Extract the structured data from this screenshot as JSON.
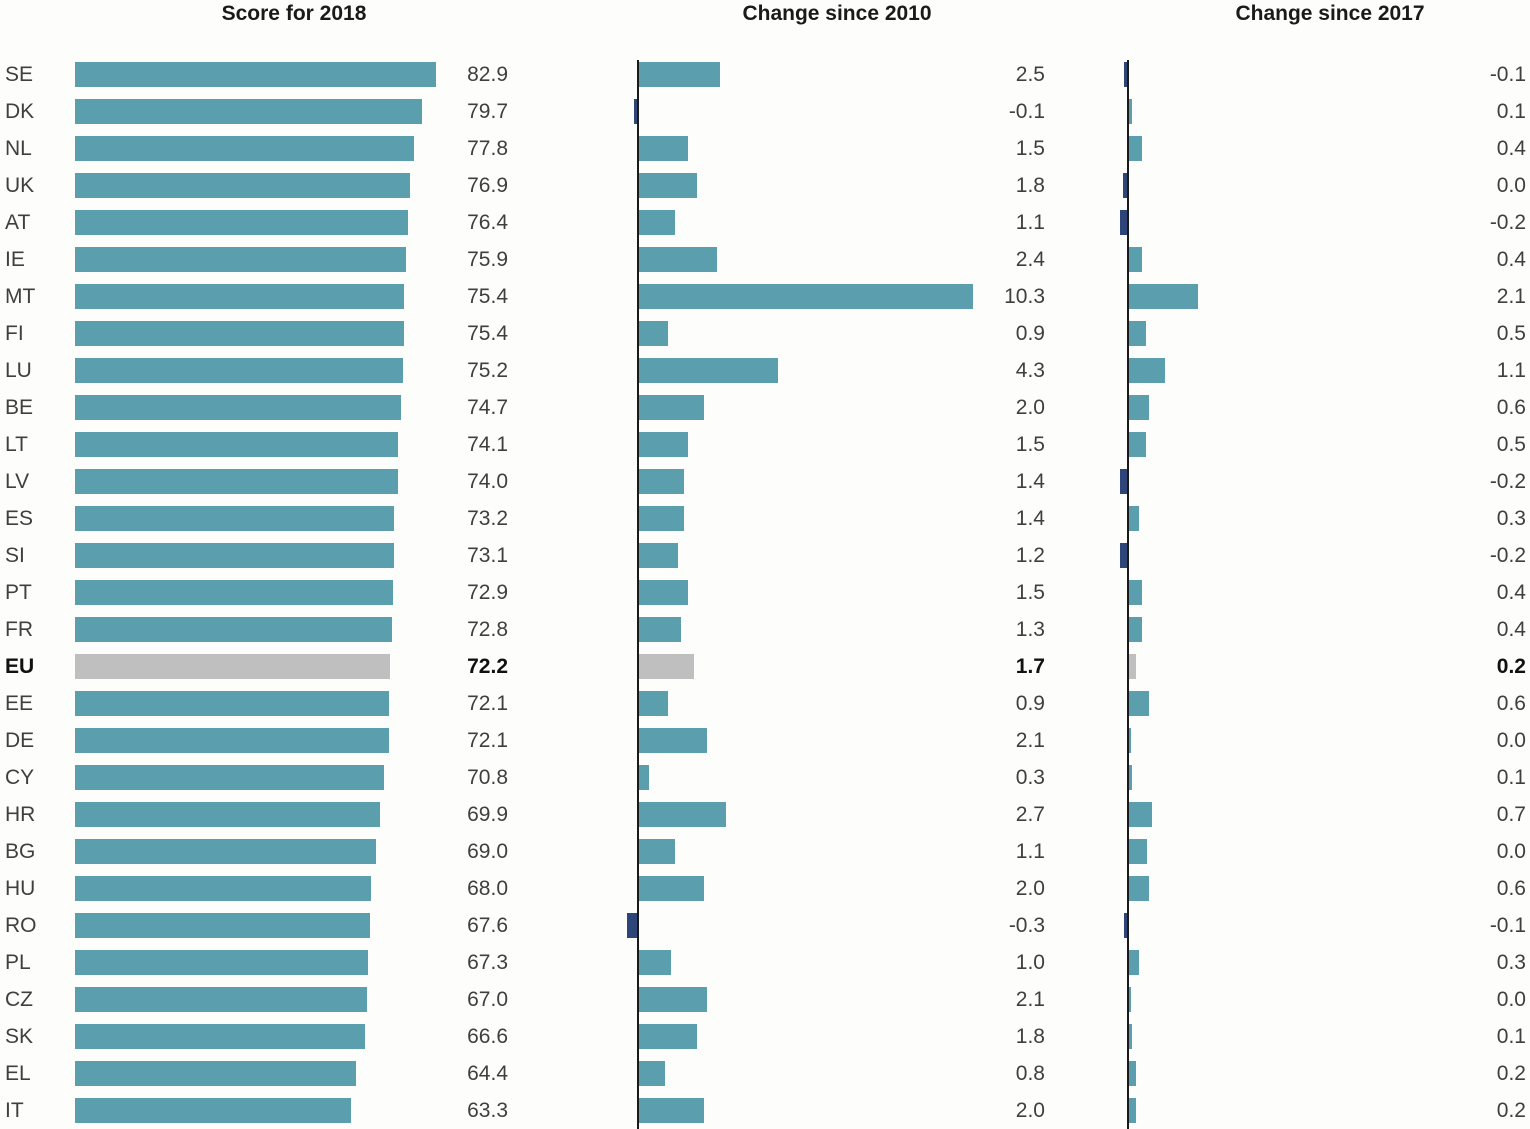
{
  "panels": {
    "score": {
      "title": "Score for 2018"
    },
    "change2010": {
      "title": "Change since 2010"
    },
    "change2017": {
      "title": "Change since 2017"
    }
  },
  "colors": {
    "positive_bar": "#5B9FAE",
    "negative_bar": "#2E4579",
    "eu_bar": "#BFBFBF",
    "axis": "#1A1A1A",
    "title_text": "#1A1A1A",
    "label_text": "#3F3F3F"
  },
  "chart_data": {
    "type": "bar",
    "orientation": "horizontal",
    "title": "",
    "categories": [
      "SE",
      "DK",
      "NL",
      "UK",
      "AT",
      "IE",
      "MT",
      "FI",
      "LU",
      "BE",
      "LT",
      "LV",
      "ES",
      "SI",
      "PT",
      "FR",
      "EU",
      "EE",
      "DE",
      "CY",
      "HR",
      "BG",
      "HU",
      "RO",
      "PL",
      "CZ",
      "SK",
      "EL",
      "IT"
    ],
    "highlight_category": "EU",
    "series": [
      {
        "name": "Score for 2018",
        "values": [
          82.9,
          79.7,
          77.8,
          76.9,
          76.4,
          75.9,
          75.4,
          75.4,
          75.2,
          74.7,
          74.1,
          74.0,
          73.2,
          73.1,
          72.9,
          72.8,
          72.2,
          72.1,
          72.1,
          70.8,
          69.9,
          69.0,
          68.0,
          67.6,
          67.3,
          67.0,
          66.6,
          64.4,
          63.3
        ],
        "xlim": [
          0,
          117
        ]
      },
      {
        "name": "Change since 2010",
        "values": [
          2.5,
          -0.1,
          1.5,
          1.8,
          1.1,
          2.4,
          10.3,
          0.9,
          4.3,
          2.0,
          1.5,
          1.4,
          1.4,
          1.2,
          1.5,
          1.3,
          1.7,
          0.9,
          2.1,
          0.3,
          2.7,
          1.1,
          2.0,
          -0.3,
          1.0,
          2.1,
          1.8,
          0.8,
          2.0
        ],
        "xlim": [
          -0.5,
          12.5
        ]
      },
      {
        "name": "Change since 2017",
        "values": [
          -0.1,
          0.1,
          0.4,
          0.0,
          -0.2,
          0.4,
          2.1,
          0.5,
          1.1,
          0.6,
          0.5,
          -0.2,
          0.3,
          -0.2,
          0.4,
          0.4,
          0.2,
          0.6,
          0.0,
          0.1,
          0.7,
          0.0,
          0.6,
          -0.1,
          0.3,
          0.0,
          0.1,
          0.2,
          0.2
        ],
        "xlim": [
          -0.5,
          12.5
        ]
      },
      {
        "name": "legend",
        "values": []
      }
    ],
    "grid": false,
    "legend_position": "none"
  },
  "rows": [
    {
      "c": "SE",
      "s": "82.9",
      "m": "2.5",
      "r": "-0.1"
    },
    {
      "c": "DK",
      "s": "79.7",
      "m": "-0.1",
      "r": "0.1"
    },
    {
      "c": "NL",
      "s": "77.8",
      "m": "1.5",
      "r": "0.4"
    },
    {
      "c": "UK",
      "s": "76.9",
      "m": "1.8",
      "r": "0.0",
      "rb": -0.12
    },
    {
      "c": "AT",
      "s": "76.4",
      "m": "1.1",
      "r": "-0.2"
    },
    {
      "c": "IE",
      "s": "75.9",
      "m": "2.4",
      "r": "0.4"
    },
    {
      "c": "MT",
      "s": "75.4",
      "m": "10.3",
      "r": "2.1"
    },
    {
      "c": "FI",
      "s": "75.4",
      "m": "0.9",
      "r": "0.5"
    },
    {
      "c": "LU",
      "s": "75.2",
      "m": "4.3",
      "r": "1.1"
    },
    {
      "c": "BE",
      "s": "74.7",
      "m": "2.0",
      "r": "0.6"
    },
    {
      "c": "LT",
      "s": "74.1",
      "m": "1.5",
      "r": "0.5"
    },
    {
      "c": "LV",
      "s": "74.0",
      "m": "1.4",
      "r": "-0.2"
    },
    {
      "c": "ES",
      "s": "73.2",
      "m": "1.4",
      "r": "0.3"
    },
    {
      "c": "SI",
      "s": "73.1",
      "m": "1.2",
      "r": "-0.2"
    },
    {
      "c": "PT",
      "s": "72.9",
      "m": "1.5",
      "r": "0.4"
    },
    {
      "c": "FR",
      "s": "72.8",
      "m": "1.3",
      "r": "0.4"
    },
    {
      "c": "EU",
      "s": "72.2",
      "m": "1.7",
      "r": "0.2",
      "eu": true
    },
    {
      "c": "EE",
      "s": "72.1",
      "m": "0.9",
      "r": "0.6"
    },
    {
      "c": "DE",
      "s": "72.1",
      "m": "2.1",
      "r": "0.0",
      "rb": 0.05
    },
    {
      "c": "CY",
      "s": "70.8",
      "m": "0.3",
      "r": "0.1"
    },
    {
      "c": "HR",
      "s": "69.9",
      "m": "2.7",
      "r": "0.7"
    },
    {
      "c": "BG",
      "s": "69.0",
      "m": "1.1",
      "r": "0.0",
      "rb": 0.55
    },
    {
      "c": "HU",
      "s": "68.0",
      "m": "2.0",
      "r": "0.6"
    },
    {
      "c": "RO",
      "s": "67.6",
      "m": "-0.3",
      "r": "-0.1"
    },
    {
      "c": "PL",
      "s": "67.3",
      "m": "1.0",
      "r": "0.3"
    },
    {
      "c": "CZ",
      "s": "67.0",
      "m": "2.1",
      "r": "0.0",
      "rb": 0.05
    },
    {
      "c": "SK",
      "s": "66.6",
      "m": "1.8",
      "r": "0.1"
    },
    {
      "c": "EL",
      "s": "64.4",
      "m": "0.8",
      "r": "0.2"
    },
    {
      "c": "IT",
      "s": "63.3",
      "m": "2.0",
      "r": "0.2"
    }
  ]
}
